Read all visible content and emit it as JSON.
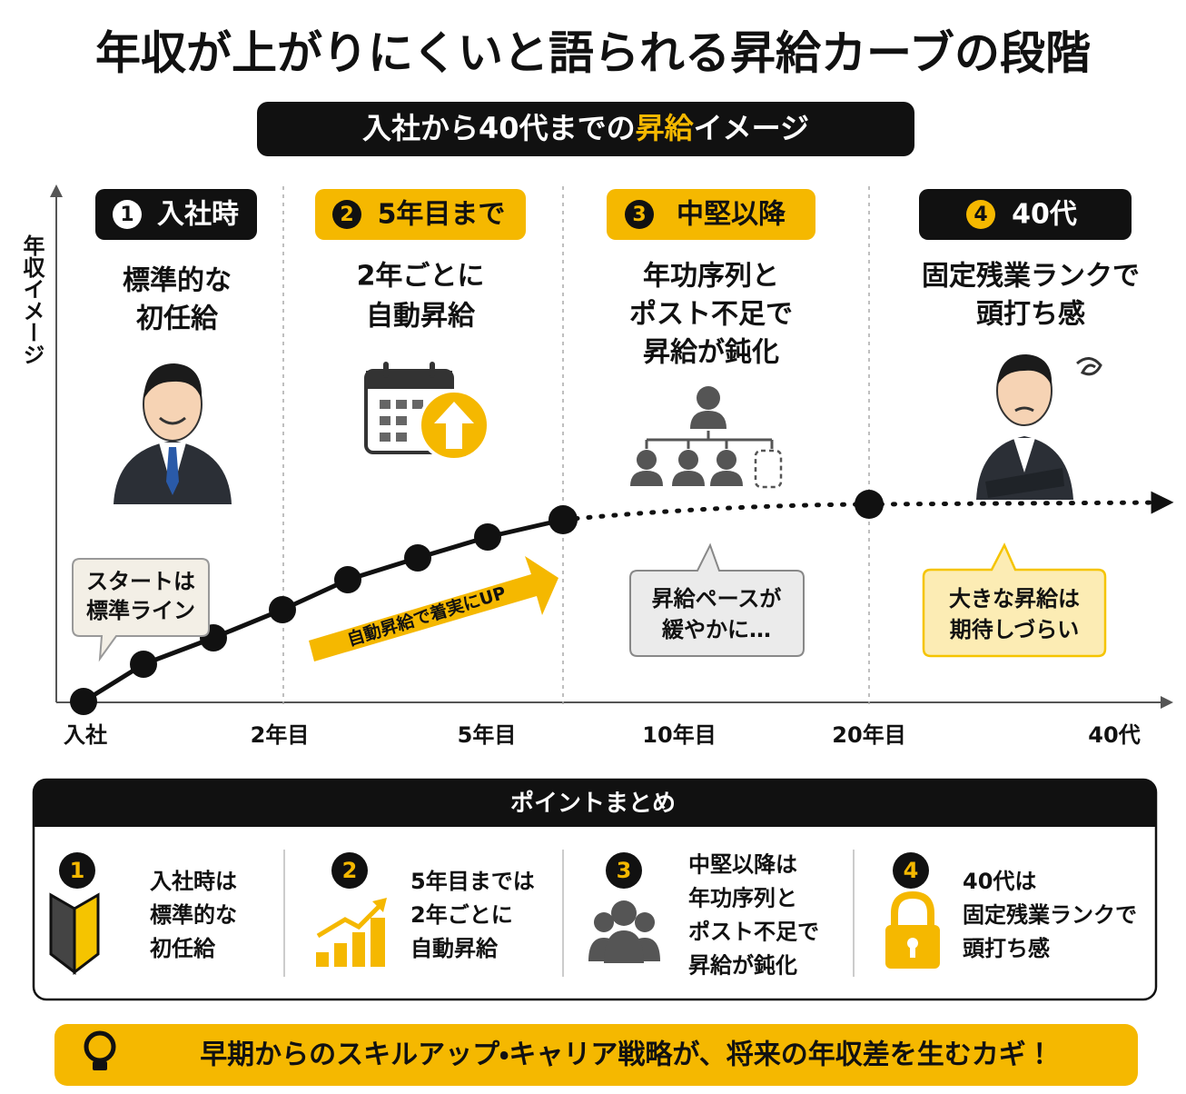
{
  "title": "年収が上がりにくいと語られる昇給カーブの段階",
  "subtitle": {
    "before": "入社から40代までの",
    "highlight": "昇給",
    "after": "イメージ"
  },
  "y_axis_label": "年収イメージ",
  "stages": [
    {
      "number": "1",
      "label": "入社時",
      "description": [
        "標準的な",
        "初任給"
      ]
    },
    {
      "number": "2",
      "label": "5年目まで",
      "description": [
        "2年ごとに",
        "自動昇給"
      ]
    },
    {
      "number": "3",
      "label": "中堅以降",
      "description": [
        "年功序列と",
        "ポスト不足で",
        "昇給が鈍化"
      ]
    },
    {
      "number": "4",
      "label": "40代",
      "description": [
        "固定残業ランクで",
        "頭打ち感"
      ]
    }
  ],
  "callouts": [
    [
      "スタートは",
      "標準ライン"
    ],
    [
      "昇給ペースが",
      "緩やかに…"
    ],
    [
      "大きな昇給は",
      "期待しづらい"
    ]
  ],
  "arrow_label": "自動昇給で着実にUP",
  "x_axis_labels": [
    "入社",
    "2年目",
    "5年目",
    "10年目",
    "20年目",
    "40代"
  ],
  "summary": {
    "title": "ポイントまとめ",
    "items": [
      {
        "number": "1",
        "lines": [
          "入社時は",
          "標準的な",
          "初任給"
        ]
      },
      {
        "number": "2",
        "lines": [
          "5年目までは",
          "2年ごとに",
          "自動昇給"
        ]
      },
      {
        "number": "3",
        "lines": [
          "中堅以降は",
          "年功序列と",
          "ポスト不足で",
          "昇給が鈍化"
        ]
      },
      {
        "number": "4",
        "lines": [
          "40代は",
          "固定残業ランクで",
          "頭打ち感"
        ]
      }
    ]
  },
  "footer": "早期からのスキルアップ・キャリア戦略が、将来の年収差を生むカギ！"
}
